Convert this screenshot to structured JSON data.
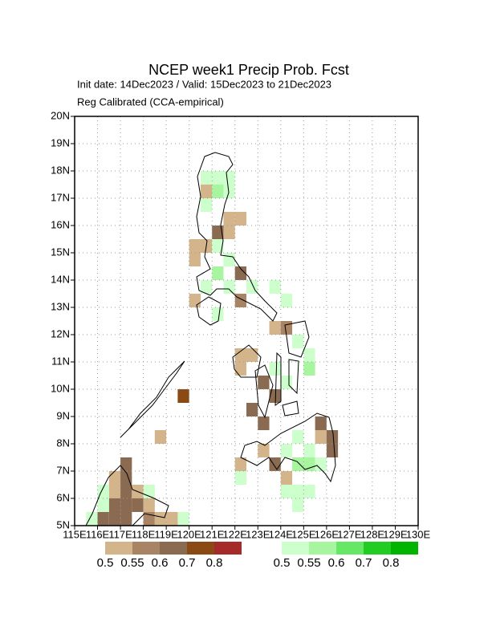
{
  "map": {
    "title": "NCEP week1 Precip Prob. Fcst",
    "subtitle": "Init date: 14Dec2023 / Valid: 15Dec2023 to 21Dec2023",
    "note": "Reg Calibrated (CCA-empirical)",
    "xlim": [
      115,
      130
    ],
    "ylim": [
      5,
      20
    ],
    "xticks": [
      {
        "value": 115,
        "label": "115E"
      },
      {
        "value": 116,
        "label": "116E"
      },
      {
        "value": 117,
        "label": "117E"
      },
      {
        "value": 118,
        "label": "118E"
      },
      {
        "value": 119,
        "label": "119E"
      },
      {
        "value": 120,
        "label": "120E"
      },
      {
        "value": 121,
        "label": "121E"
      },
      {
        "value": 122,
        "label": "122E"
      },
      {
        "value": 123,
        "label": "123E"
      },
      {
        "value": 124,
        "label": "124E"
      },
      {
        "value": 125,
        "label": "125E"
      },
      {
        "value": 126,
        "label": "126E"
      },
      {
        "value": 127,
        "label": "127E"
      },
      {
        "value": 128,
        "label": "128E"
      },
      {
        "value": 129,
        "label": "129E"
      },
      {
        "value": 130,
        "label": "130E"
      }
    ],
    "yticks": [
      {
        "value": 5,
        "label": "5N"
      },
      {
        "value": 6,
        "label": "6N"
      },
      {
        "value": 7,
        "label": "7N"
      },
      {
        "value": 8,
        "label": "8N"
      },
      {
        "value": 9,
        "label": "9N"
      },
      {
        "value": 10,
        "label": "10N"
      },
      {
        "value": 11,
        "label": "11N"
      },
      {
        "value": 12,
        "label": "12N"
      },
      {
        "value": 13,
        "label": "13N"
      },
      {
        "value": 14,
        "label": "14N"
      },
      {
        "value": 15,
        "label": "15N"
      },
      {
        "value": 16,
        "label": "16N"
      },
      {
        "value": 17,
        "label": "17N"
      },
      {
        "value": 18,
        "label": "18N"
      },
      {
        "value": 19,
        "label": "19N"
      },
      {
        "value": 20,
        "label": "20N"
      }
    ],
    "grid": true,
    "legend": {
      "levels": [
        0.5,
        0.55,
        0.6,
        0.7,
        0.8
      ],
      "dry_colors": [
        "#d4b48a",
        "#a88464",
        "#8a6a50",
        "#8b4a14",
        "#a52a2a"
      ],
      "wet_colors": [
        "#ccffcc",
        "#a8f5a0",
        "#66e866",
        "#22cc22",
        "#00b400"
      ]
    },
    "cells": [
      {
        "lon": 120.5,
        "lat": 17.5,
        "prob": 0.5,
        "kind": "wet"
      },
      {
        "lon": 121,
        "lat": 17.5,
        "prob": 0.5,
        "kind": "wet"
      },
      {
        "lon": 121.5,
        "lat": 17.5,
        "prob": 0.5,
        "kind": "wet"
      },
      {
        "lon": 121,
        "lat": 17,
        "prob": 0.55,
        "kind": "wet"
      },
      {
        "lon": 121.5,
        "lat": 17,
        "prob": 0.5,
        "kind": "wet"
      },
      {
        "lon": 120.5,
        "lat": 16.5,
        "prob": 0.5,
        "kind": "wet"
      },
      {
        "lon": 120.5,
        "lat": 17,
        "prob": 0.5,
        "kind": "dry"
      },
      {
        "lon": 121.5,
        "lat": 16,
        "prob": 0.5,
        "kind": "dry"
      },
      {
        "lon": 122,
        "lat": 16,
        "prob": 0.5,
        "kind": "dry"
      },
      {
        "lon": 121,
        "lat": 15.5,
        "prob": 0.6,
        "kind": "dry"
      },
      {
        "lon": 121.5,
        "lat": 15.5,
        "prob": 0.5,
        "kind": "dry"
      },
      {
        "lon": 120,
        "lat": 15,
        "prob": 0.5,
        "kind": "dry"
      },
      {
        "lon": 120.5,
        "lat": 15,
        "prob": 0.5,
        "kind": "dry"
      },
      {
        "lon": 120,
        "lat": 14.5,
        "prob": 0.5,
        "kind": "dry"
      },
      {
        "lon": 121,
        "lat": 15,
        "prob": 0.5,
        "kind": "wet"
      },
      {
        "lon": 121.5,
        "lat": 14.5,
        "prob": 0.5,
        "kind": "wet"
      },
      {
        "lon": 121,
        "lat": 14,
        "prob": 0.55,
        "kind": "wet"
      },
      {
        "lon": 121.5,
        "lat": 13.5,
        "prob": 0.5,
        "kind": "wet"
      },
      {
        "lon": 120.5,
        "lat": 13.5,
        "prob": 0.5,
        "kind": "wet"
      },
      {
        "lon": 122.5,
        "lat": 13.5,
        "prob": 0.5,
        "kind": "wet"
      },
      {
        "lon": 123.5,
        "lat": 13.5,
        "prob": 0.5,
        "kind": "wet"
      },
      {
        "lon": 124,
        "lat": 13,
        "prob": 0.5,
        "kind": "wet"
      },
      {
        "lon": 121,
        "lat": 12.5,
        "prob": 0.5,
        "kind": "wet"
      },
      {
        "lon": 122,
        "lat": 14,
        "prob": 0.6,
        "kind": "dry"
      },
      {
        "lon": 122,
        "lat": 13,
        "prob": 0.55,
        "kind": "dry"
      },
      {
        "lon": 120,
        "lat": 13,
        "prob": 0.5,
        "kind": "dry"
      },
      {
        "lon": 123.5,
        "lat": 12,
        "prob": 0.5,
        "kind": "dry"
      },
      {
        "lon": 124,
        "lat": 12,
        "prob": 0.55,
        "kind": "dry"
      },
      {
        "lon": 122,
        "lat": 11,
        "prob": 0.5,
        "kind": "dry"
      },
      {
        "lon": 122,
        "lat": 10.5,
        "prob": 0.5,
        "kind": "dry"
      },
      {
        "lon": 122.5,
        "lat": 11,
        "prob": 0.5,
        "kind": "dry"
      },
      {
        "lon": 123,
        "lat": 10,
        "prob": 0.6,
        "kind": "dry"
      },
      {
        "lon": 123.5,
        "lat": 9.5,
        "prob": 0.6,
        "kind": "dry"
      },
      {
        "lon": 122.5,
        "lat": 9,
        "prob": 0.6,
        "kind": "dry"
      },
      {
        "lon": 123,
        "lat": 8.5,
        "prob": 0.6,
        "kind": "dry"
      },
      {
        "lon": 119.5,
        "lat": 9.5,
        "prob": 0.7,
        "kind": "dry"
      },
      {
        "lon": 118.5,
        "lat": 8,
        "prob": 0.5,
        "kind": "dry"
      },
      {
        "lon": 123,
        "lat": 7.5,
        "prob": 0.5,
        "kind": "dry"
      },
      {
        "lon": 123.5,
        "lat": 7,
        "prob": 0.6,
        "kind": "dry"
      },
      {
        "lon": 122,
        "lat": 7,
        "prob": 0.5,
        "kind": "dry"
      },
      {
        "lon": 124,
        "lat": 6.5,
        "prob": 0.5,
        "kind": "dry"
      },
      {
        "lon": 125.5,
        "lat": 8,
        "prob": 0.5,
        "kind": "dry"
      },
      {
        "lon": 126,
        "lat": 7.5,
        "prob": 0.6,
        "kind": "dry"
      },
      {
        "lon": 126,
        "lat": 8,
        "prob": 0.6,
        "kind": "dry"
      },
      {
        "lon": 125.5,
        "lat": 8.5,
        "prob": 0.6,
        "kind": "dry"
      },
      {
        "lon": 124.5,
        "lat": 11.5,
        "prob": 0.5,
        "kind": "wet"
      },
      {
        "lon": 125,
        "lat": 11,
        "prob": 0.5,
        "kind": "wet"
      },
      {
        "lon": 125,
        "lat": 10.5,
        "prob": 0.55,
        "kind": "wet"
      },
      {
        "lon": 124,
        "lat": 10,
        "prob": 0.5,
        "kind": "wet"
      },
      {
        "lon": 124.5,
        "lat": 8,
        "prob": 0.5,
        "kind": "wet"
      },
      {
        "lon": 124,
        "lat": 7.5,
        "prob": 0.5,
        "kind": "wet"
      },
      {
        "lon": 124.5,
        "lat": 7,
        "prob": 0.55,
        "kind": "wet"
      },
      {
        "lon": 125,
        "lat": 7.5,
        "prob": 0.5,
        "kind": "wet"
      },
      {
        "lon": 125,
        "lat": 7,
        "prob": 0.55,
        "kind": "wet"
      },
      {
        "lon": 125.5,
        "lat": 7,
        "prob": 0.5,
        "kind": "wet"
      },
      {
        "lon": 124,
        "lat": 6,
        "prob": 0.5,
        "kind": "wet"
      },
      {
        "lon": 124.5,
        "lat": 6,
        "prob": 0.5,
        "kind": "wet"
      },
      {
        "lon": 125,
        "lat": 6,
        "prob": 0.5,
        "kind": "wet"
      },
      {
        "lon": 124.5,
        "lat": 5.5,
        "prob": 0.5,
        "kind": "wet"
      },
      {
        "lon": 122,
        "lat": 6.5,
        "prob": 0.5,
        "kind": "wet"
      },
      {
        "lon": 118,
        "lat": 6,
        "prob": 0.5,
        "kind": "wet"
      },
      {
        "lon": 119.5,
        "lat": 5,
        "prob": 0.5,
        "kind": "wet"
      },
      {
        "lon": 123.5,
        "lat": 10.5,
        "prob": 0.5,
        "kind": "wet"
      },
      {
        "lon": 116.5,
        "lat": 6,
        "prob": 0.5,
        "kind": "dry"
      },
      {
        "lon": 116.5,
        "lat": 6.5,
        "prob": 0.5,
        "kind": "dry"
      },
      {
        "lon": 117,
        "lat": 6.5,
        "prob": 0.6,
        "kind": "dry"
      },
      {
        "lon": 117,
        "lat": 6,
        "prob": 0.6,
        "kind": "dry"
      },
      {
        "lon": 117,
        "lat": 5.5,
        "prob": 0.6,
        "kind": "dry"
      },
      {
        "lon": 117.5,
        "lat": 5.5,
        "prob": 0.6,
        "kind": "dry"
      },
      {
        "lon": 117,
        "lat": 7,
        "prob": 0.6,
        "kind": "dry"
      },
      {
        "lon": 116.5,
        "lat": 5.5,
        "prob": 0.6,
        "kind": "dry"
      },
      {
        "lon": 116,
        "lat": 5,
        "prob": 0.6,
        "kind": "dry"
      },
      {
        "lon": 117.5,
        "lat": 6,
        "prob": 0.5,
        "kind": "dry"
      },
      {
        "lon": 118,
        "lat": 5.5,
        "prob": 0.5,
        "kind": "dry"
      },
      {
        "lon": 118,
        "lat": 5,
        "prob": 0.55,
        "kind": "dry"
      },
      {
        "lon": 117,
        "lat": 5,
        "prob": 0.6,
        "kind": "dry"
      },
      {
        "lon": 116.5,
        "lat": 5,
        "prob": 0.6,
        "kind": "dry"
      },
      {
        "lon": 118.5,
        "lat": 5,
        "prob": 0.5,
        "kind": "dry"
      },
      {
        "lon": 119,
        "lat": 5,
        "prob": 0.5,
        "kind": "dry"
      },
      {
        "lon": 115.5,
        "lat": 5,
        "prob": 0.5,
        "kind": "wet"
      },
      {
        "lon": 116,
        "lat": 5.5,
        "prob": 0.5,
        "kind": "wet"
      },
      {
        "lon": 116,
        "lat": 6,
        "prob": 0.5,
        "kind": "wet"
      }
    ]
  }
}
